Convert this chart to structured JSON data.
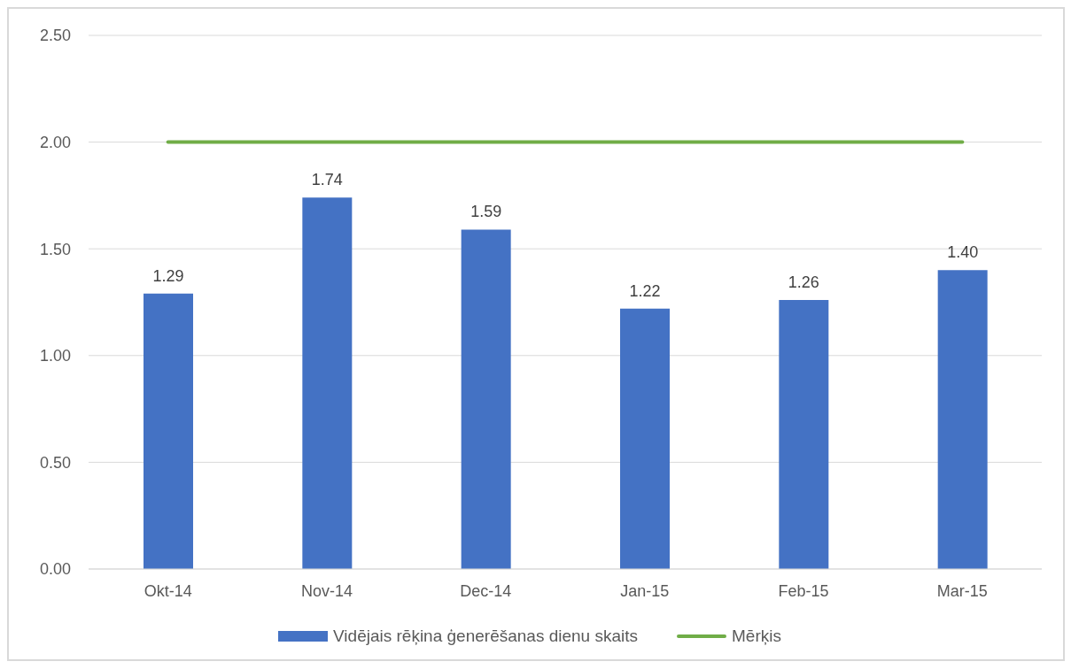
{
  "chart_data": {
    "type": "bar",
    "categories": [
      "Okt-14",
      "Nov-14",
      "Dec-14",
      "Jan-15",
      "Feb-15",
      "Mar-15"
    ],
    "series": [
      {
        "name": "Vidējais rēķina ģenerēšanas dienu skaits",
        "color": "#4472c4",
        "values": [
          1.29,
          1.74,
          1.59,
          1.22,
          1.26,
          1.4
        ],
        "value_labels": [
          "1.29",
          "1.74",
          "1.59",
          "1.22",
          "1.26",
          "1.40"
        ]
      },
      {
        "name": "Mērķis",
        "type": "line",
        "color": "#70ad47",
        "values": [
          2,
          2,
          2,
          2,
          2,
          2
        ]
      }
    ],
    "ylim": [
      0,
      2.5
    ],
    "yticks": [
      {
        "value": 0,
        "label": "0.00"
      },
      {
        "value": 0.5,
        "label": "0.50"
      },
      {
        "value": 1,
        "label": "1.00"
      },
      {
        "value": 1.5,
        "label": "1.50"
      },
      {
        "value": 2,
        "label": "2.00"
      },
      {
        "value": 2.5,
        "label": "2.50"
      }
    ],
    "grid": "y",
    "legend": "bottom",
    "marker": "none"
  }
}
